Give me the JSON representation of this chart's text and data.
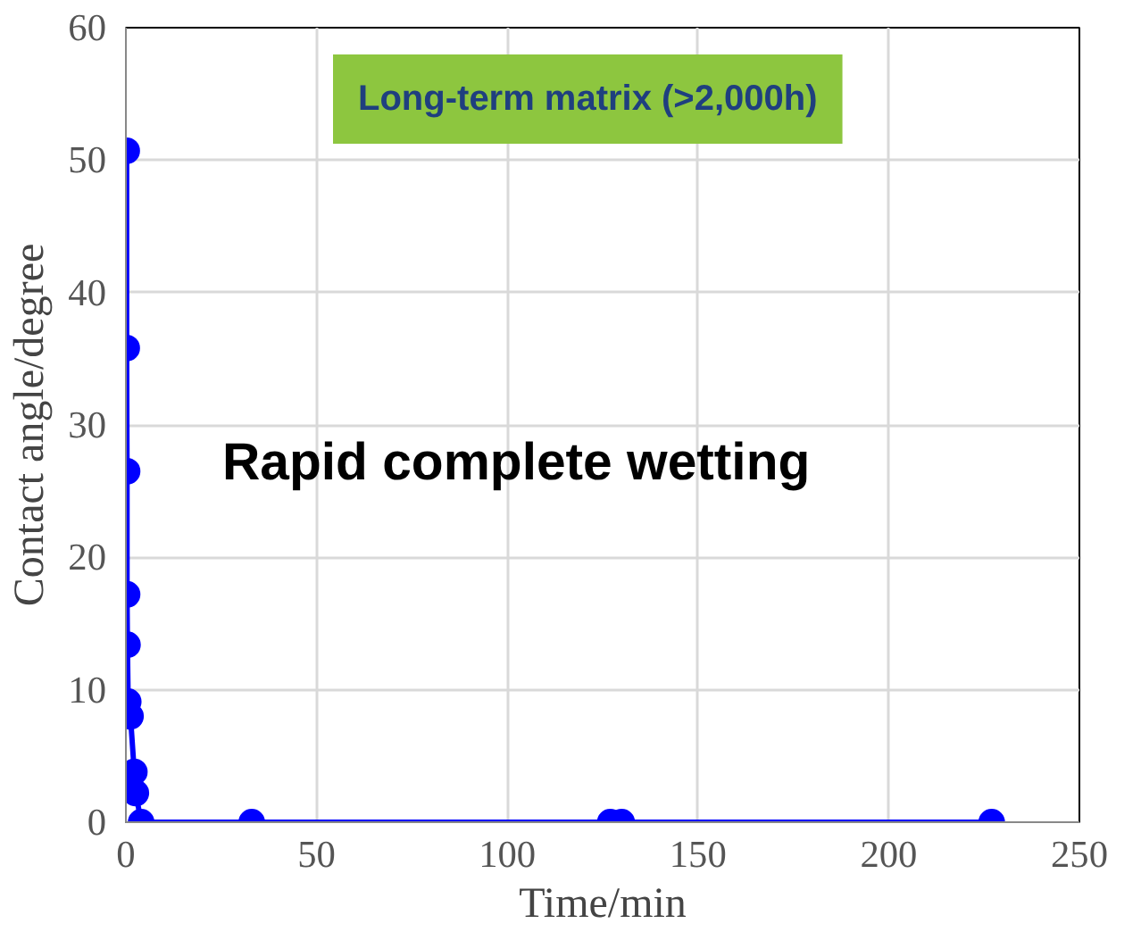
{
  "chart_data": {
    "type": "line",
    "xlabel": "Time/min",
    "ylabel": "Contact angle/degree",
    "x": [
      0.2,
      0.2,
      0.3,
      0.3,
      0.4,
      0.6,
      1.2,
      2.2,
      2.6,
      4,
      33,
      127,
      130,
      227
    ],
    "series": [
      {
        "color": "#0000ff",
        "values": [
          50.7,
          35.8,
          26.5,
          17.2,
          13.4,
          9.1,
          8.0,
          3.8,
          2.2,
          0,
          0,
          0,
          0,
          0
        ]
      }
    ],
    "xlim": [
      0,
      250
    ],
    "ylim": [
      0,
      60
    ],
    "xticks": [
      0,
      50,
      100,
      150,
      200,
      250
    ],
    "yticks": [
      0,
      10,
      20,
      30,
      40,
      50,
      60
    ],
    "grid": true,
    "marker": "circle",
    "line_style": "solid",
    "annotations": [
      "Long-term matrix (>2,000h)",
      "Rapid complete wetting"
    ]
  }
}
